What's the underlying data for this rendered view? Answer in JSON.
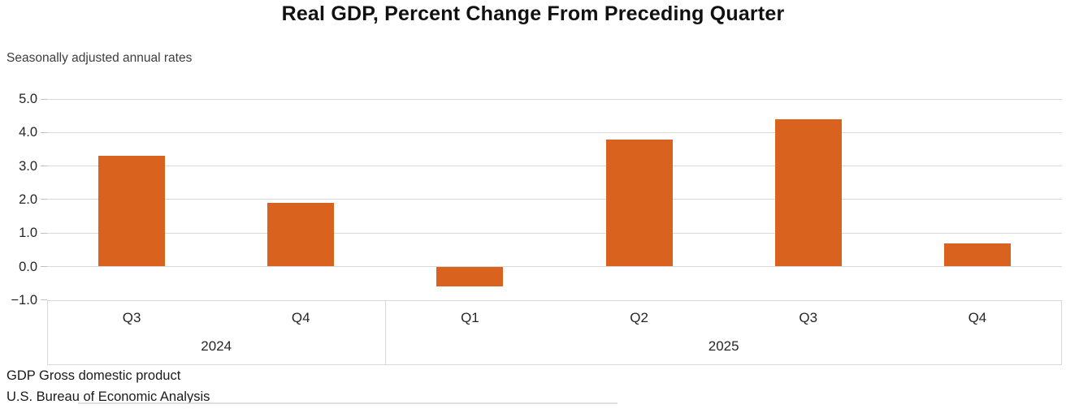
{
  "chart_data": {
    "type": "bar",
    "title": "Real GDP, Percent Change From Preceding Quarter",
    "subtitle": "Seasonally adjusted annual rates",
    "categories": [
      "Q3 2024",
      "Q4 2024",
      "Q1 2025",
      "Q2 2025",
      "Q3 2025",
      "Q4 2025"
    ],
    "quarter_labels": [
      "Q3",
      "Q4",
      "Q1",
      "Q2",
      "Q3",
      "Q4"
    ],
    "year_groups": [
      {
        "label": "2024",
        "span": 2
      },
      {
        "label": "2025",
        "span": 4
      }
    ],
    "values": [
      3.3,
      1.9,
      -0.6,
      3.8,
      4.4,
      0.7
    ],
    "ylim": [
      -1.0,
      5.0
    ],
    "yticks": [
      {
        "value": 5.0,
        "label": "5.0"
      },
      {
        "value": 4.0,
        "label": "4.0"
      },
      {
        "value": 3.0,
        "label": "3.0"
      },
      {
        "value": 2.0,
        "label": "2.0"
      },
      {
        "value": 1.0,
        "label": "1.0"
      },
      {
        "value": 0.0,
        "label": "0.0"
      },
      {
        "value": -1.0,
        "label": "−1.0"
      }
    ],
    "grid": true,
    "legend": false,
    "bar_color": "#d9631e",
    "grid_color": "#d9d9d9",
    "tick_color": "#bfbfbf",
    "axis_box_color": "#d9d9d9"
  },
  "footer": {
    "line1": "GDP Gross domestic product",
    "line2": "U.S. Bureau of Economic Analysis"
  }
}
